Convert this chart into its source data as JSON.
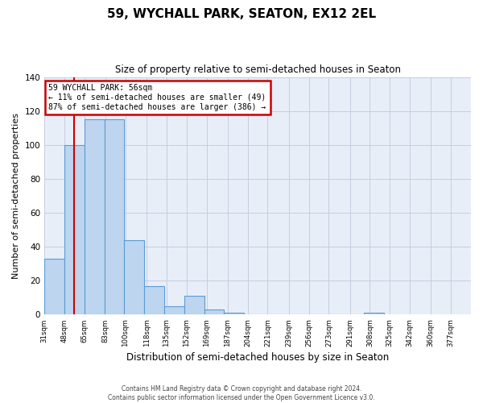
{
  "title": "59, WYCHALL PARK, SEATON, EX12 2EL",
  "subtitle": "Size of property relative to semi-detached houses in Seaton",
  "xlabel": "Distribution of semi-detached houses by size in Seaton",
  "ylabel": "Number of semi-detached properties",
  "bar_values": [
    33,
    100,
    115,
    115,
    44,
    17,
    5,
    11,
    3,
    1,
    0,
    0,
    0,
    0,
    0,
    0,
    1
  ],
  "bin_left_edges": [
    31,
    48,
    65,
    82,
    99,
    116,
    133,
    150,
    167,
    184,
    201,
    218,
    235,
    252,
    269,
    286,
    303
  ],
  "bin_width": 17,
  "tick_positions": [
    31,
    48,
    65,
    83,
    100,
    118,
    135,
    152,
    169,
    187,
    204,
    221,
    239,
    256,
    273,
    291,
    308,
    325,
    342,
    360,
    377
  ],
  "tick_labels": [
    "31sqm",
    "48sqm",
    "65sqm",
    "83sqm",
    "100sqm",
    "118sqm",
    "135sqm",
    "152sqm",
    "169sqm",
    "187sqm",
    "204sqm",
    "221sqm",
    "239sqm",
    "256sqm",
    "273sqm",
    "291sqm",
    "308sqm",
    "325sqm",
    "342sqm",
    "360sqm",
    "377sqm"
  ],
  "bar_color": "#BDD5EE",
  "bar_edge_color": "#5B9BD5",
  "property_line_x": 56,
  "property_line_color": "#CC0000",
  "xlim_left": 31,
  "xlim_right": 394,
  "ylim": [
    0,
    140
  ],
  "yticks": [
    0,
    20,
    40,
    60,
    80,
    100,
    120,
    140
  ],
  "bg_color": "#E8EEF8",
  "grid_color": "#C5CEE0",
  "annotation_title": "59 WYCHALL PARK: 56sqm",
  "annotation_line1": "← 11% of semi-detached houses are smaller (49)",
  "annotation_line2": "87% of semi-detached houses are larger (386) →",
  "annotation_box_color": "#CC0000",
  "footer_line1": "Contains HM Land Registry data © Crown copyright and database right 2024.",
  "footer_line2": "Contains public sector information licensed under the Open Government Licence v3.0."
}
